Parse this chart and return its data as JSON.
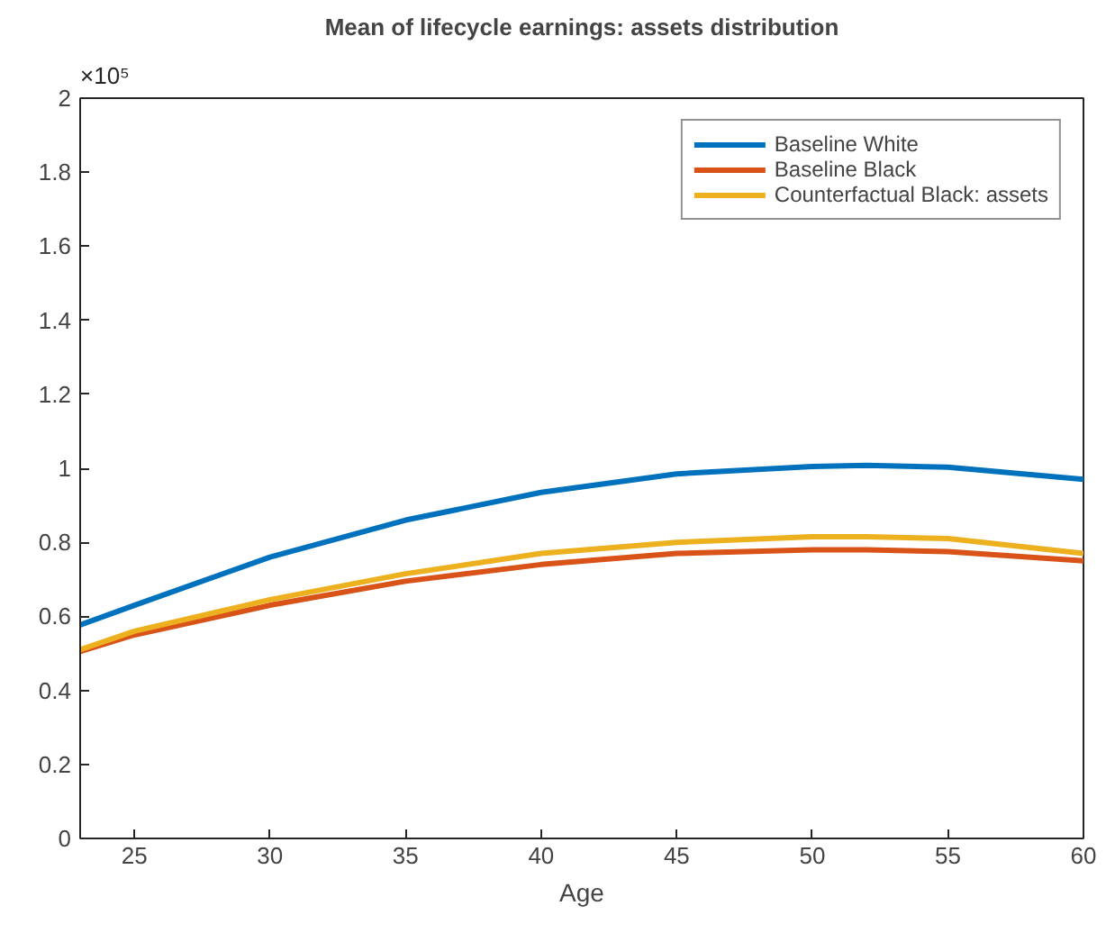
{
  "chart_data": {
    "type": "line",
    "title": "Mean of lifecycle earnings: assets distribution",
    "xlabel": "Age",
    "x": [
      23,
      25,
      30,
      35,
      40,
      45,
      50,
      52,
      55,
      60
    ],
    "series": [
      {
        "name": "Baseline White",
        "color": "#0072bd",
        "values": [
          0.577,
          0.63,
          0.76,
          0.86,
          0.935,
          0.985,
          1.005,
          1.008,
          1.003,
          0.97
        ]
      },
      {
        "name": "Baseline Black",
        "color": "#d95319",
        "values": [
          0.505,
          0.55,
          0.63,
          0.695,
          0.74,
          0.77,
          0.78,
          0.78,
          0.775,
          0.75
        ]
      },
      {
        "name": "Counterfactual Black: assets",
        "color": "#edb120",
        "values": [
          0.51,
          0.56,
          0.645,
          0.715,
          0.77,
          0.8,
          0.815,
          0.815,
          0.81,
          0.77
        ]
      }
    ],
    "xlim": [
      23,
      60
    ],
    "xticks": [
      25,
      30,
      35,
      40,
      45,
      50,
      55,
      60
    ],
    "ylim": [
      0,
      2
    ],
    "yticks": [
      0,
      0.2,
      0.4,
      0.6,
      0.8,
      1,
      1.2,
      1.4,
      1.6,
      1.8,
      2
    ],
    "annotations": [
      "×10⁵"
    ],
    "grid": false,
    "legend": "top right",
    "line_style": "solid",
    "marker": "none"
  }
}
